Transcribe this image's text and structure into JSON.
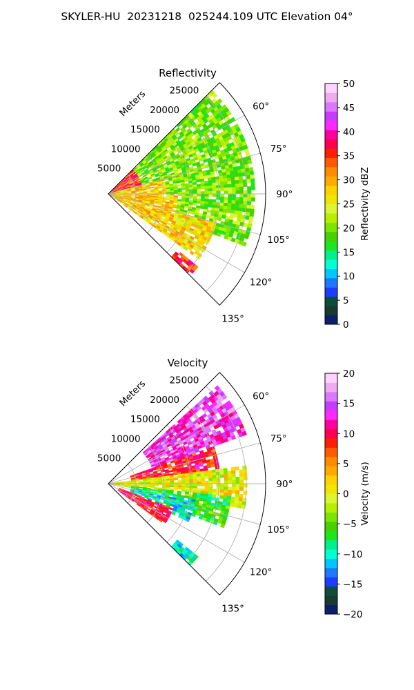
{
  "figure": {
    "title": "SKYLER-HU  20231218  025244.109 UTC Elevation 04°"
  },
  "colors": {
    "reflectivity_scale": [
      "#0b1f6b",
      "#1a3a2f",
      "#0d4d3c",
      "#1e3cff",
      "#1e78ff",
      "#00c8ff",
      "#00ffd2",
      "#00f08c",
      "#1ee61e",
      "#46d200",
      "#7ce600",
      "#b4f000",
      "#dcf532",
      "#f0e600",
      "#ffd200",
      "#ffaa00",
      "#ff8c00",
      "#ff5a00",
      "#ff1e00",
      "#ff0050",
      "#ff00a0",
      "#ff28ff",
      "#c83cff",
      "#dc78ff",
      "#f0aaf0",
      "#ffd2ff"
    ],
    "velocity_scale": [
      "#0b1f6b",
      "#1a3a2f",
      "#0d4d3c",
      "#1e3cff",
      "#1e78ff",
      "#00c8ff",
      "#00ffd2",
      "#00f08c",
      "#1ee61e",
      "#46d200",
      "#7ce600",
      "#b4f000",
      "#dcf532",
      "#f0e600",
      "#ffd200",
      "#ffaa00",
      "#ff8c00",
      "#ff5a00",
      "#ff1e00",
      "#ff0050",
      "#ff00a0",
      "#ff28ff",
      "#c83cff",
      "#dc78ff",
      "#f0aaf0",
      "#ffd2ff"
    ]
  },
  "chart_data": [
    {
      "type": "heatmap",
      "title": "Reflectivity",
      "projection": "polar-sector",
      "radial_label": "Meters",
      "radial_ticks": [
        5000,
        10000,
        15000,
        20000,
        25000
      ],
      "radial_tick_labels": [
        "5000",
        "10000",
        "15000",
        "20000",
        "25000"
      ],
      "angle_range_deg": [
        45,
        135
      ],
      "angle_ticks": [
        "60°",
        "75°",
        "90°",
        "105°",
        "120°",
        "135°"
      ],
      "grid": true,
      "colorbar": {
        "label": "Reflectivity dBZ",
        "range": [
          0,
          50
        ],
        "ticks": [
          0,
          5,
          10,
          15,
          20,
          25,
          30,
          35,
          40,
          45,
          50
        ],
        "tick_labels": [
          "0",
          "5",
          "10",
          "15",
          "20",
          "25",
          "30",
          "35",
          "40",
          "45",
          "50"
        ]
      },
      "echo_regions": [
        {
          "az": [
            45,
            75
          ],
          "r": [
            0,
            6000
          ],
          "value": 35
        },
        {
          "az": [
            45,
            110
          ],
          "r": [
            6000,
            26000
          ],
          "value": 20
        },
        {
          "az": [
            75,
            105
          ],
          "r": [
            0,
            10000
          ],
          "value": 28
        },
        {
          "az": [
            90,
            125
          ],
          "r": [
            0,
            12000
          ],
          "value": 28
        },
        {
          "az": [
            105,
            125
          ],
          "r": [
            12000,
            20000
          ],
          "value": 27
        },
        {
          "az": [
            128,
            134
          ],
          "r": [
            16000,
            21000
          ],
          "value": 35
        }
      ]
    },
    {
      "type": "heatmap",
      "title": "Velocity",
      "projection": "polar-sector",
      "radial_label": "Meters",
      "radial_ticks": [
        5000,
        10000,
        15000,
        20000,
        25000
      ],
      "radial_tick_labels": [
        "5000",
        "10000",
        "15000",
        "20000",
        "25000"
      ],
      "angle_range_deg": [
        45,
        135
      ],
      "angle_ticks": [
        "60°",
        "75°",
        "90°",
        "105°",
        "120°",
        "135°"
      ],
      "grid": true,
      "colorbar": {
        "label": "Velocity (m/s)",
        "range": [
          -20,
          20
        ],
        "ticks": [
          -20,
          -15,
          -10,
          -5,
          0,
          5,
          10,
          15,
          20
        ],
        "tick_labels": [
          "−20",
          "−15",
          "−10",
          "−5",
          "0",
          "5",
          "10",
          "15",
          "20"
        ]
      },
      "echo_regions": [
        {
          "az": [
            48,
            70
          ],
          "r": [
            8000,
            26000
          ],
          "value": 14
        },
        {
          "az": [
            70,
            85
          ],
          "r": [
            4000,
            20000
          ],
          "value": 9
        },
        {
          "az": [
            82,
            100
          ],
          "r": [
            0,
            25000
          ],
          "value": 0
        },
        {
          "az": [
            95,
            110
          ],
          "r": [
            4000,
            22000
          ],
          "value": -6
        },
        {
          "az": [
            100,
            115
          ],
          "r": [
            4000,
            16000
          ],
          "value": -10
        },
        {
          "az": [
            110,
            125
          ],
          "r": [
            2000,
            12000
          ],
          "value": 10
        },
        {
          "az": [
            128,
            134
          ],
          "r": [
            16000,
            21000
          ],
          "value": -10
        }
      ]
    }
  ]
}
